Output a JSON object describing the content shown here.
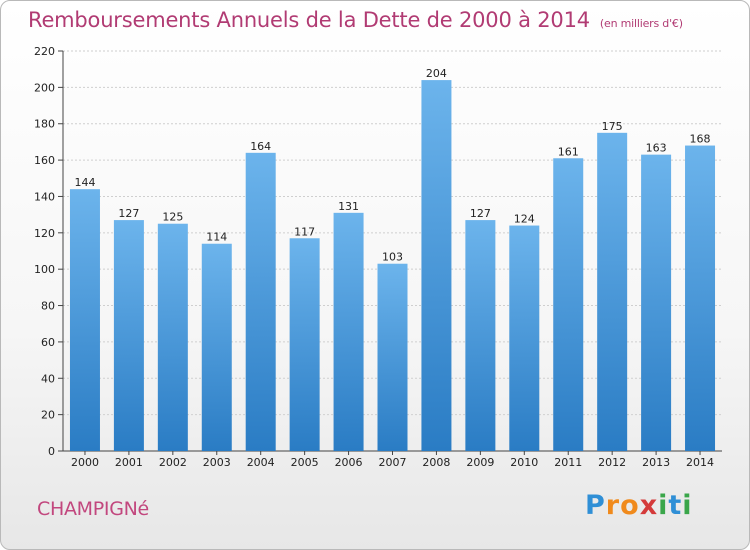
{
  "chart_data": {
    "type": "bar",
    "title": "Remboursements Annuels de la Dette de 2000 à 2014",
    "unit": "(en milliers d'€)",
    "categories": [
      "2000",
      "2001",
      "2002",
      "2003",
      "2004",
      "2005",
      "2006",
      "2007",
      "2008",
      "2009",
      "2010",
      "2011",
      "2012",
      "2013",
      "2014"
    ],
    "values": [
      144,
      127,
      125,
      114,
      164,
      117,
      131,
      103,
      204,
      127,
      124,
      161,
      175,
      163,
      168
    ],
    "ylim": [
      0,
      220
    ],
    "yticks": [
      0,
      20,
      40,
      60,
      80,
      100,
      120,
      140,
      160,
      180,
      200,
      220
    ],
    "grid": true,
    "xlabel": "",
    "ylabel": ""
  },
  "city": "CHAMPIGNé",
  "logo": {
    "letters": [
      "P",
      "r",
      "o",
      "x",
      "i",
      "t",
      "i"
    ],
    "colors": [
      "#2f8fd6",
      "#f08a1c",
      "#f08a1c",
      "#d43a3a",
      "#3aa64a",
      "#2f8fd6",
      "#3aa64a"
    ]
  },
  "colors": {
    "bar_top": "#6cb4ec",
    "bar_bottom": "#2a7cc4",
    "grid": "#cfcfcf",
    "accent": "#b13b73"
  }
}
